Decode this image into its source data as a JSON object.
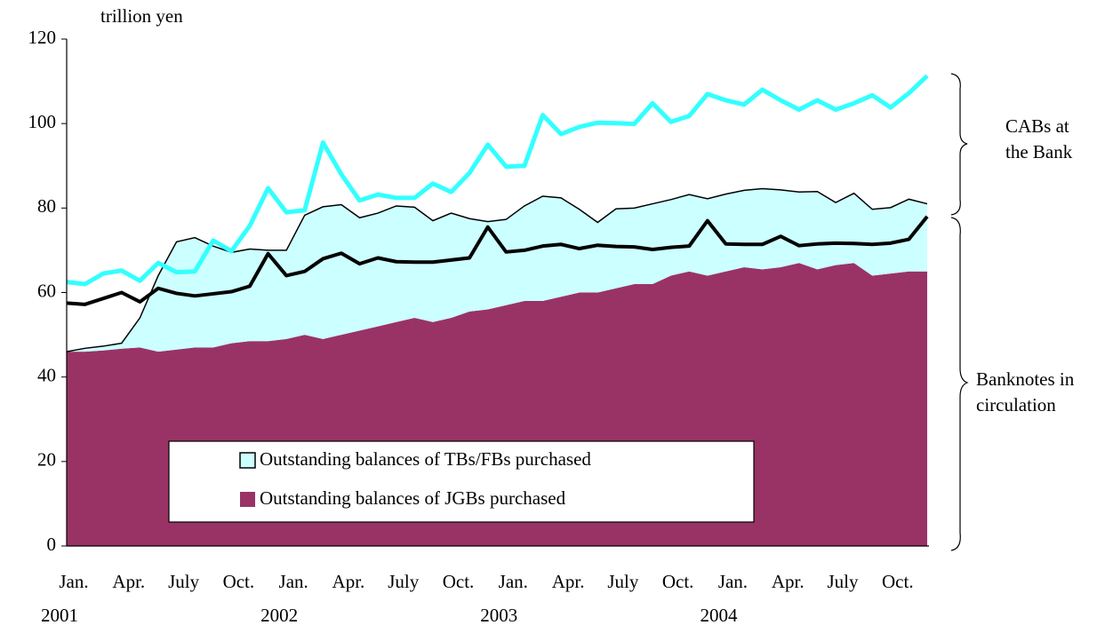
{
  "chart_data": {
    "type": "area",
    "y_label": "trillion yen",
    "categories": [
      "Jan.",
      null,
      null,
      "Apr.",
      null,
      null,
      "July",
      null,
      null,
      "Oct.",
      null,
      null,
      "Jan.",
      null,
      null,
      "Apr.",
      null,
      null,
      "July",
      null,
      null,
      "Oct.",
      null,
      null,
      "Jan.",
      null,
      null,
      "Apr.",
      null,
      null,
      "July",
      null,
      null,
      "Oct.",
      null,
      null,
      "Jan.",
      null,
      null,
      "Apr.",
      null,
      null,
      "July",
      null,
      null,
      "Oct.",
      null,
      null
    ],
    "year_labels": [
      "2001",
      "2002",
      "2003",
      "2004"
    ],
    "ylim": [
      0,
      120
    ],
    "yticks": [
      0,
      20,
      40,
      60,
      80,
      100,
      120
    ],
    "series": [
      {
        "name": "Outstanding balances of JGBs purchased",
        "color": "#993366",
        "style": "area",
        "values": [
          46,
          46,
          46.3,
          46.7,
          47,
          46,
          46.5,
          47,
          47,
          48,
          48.5,
          48.5,
          49,
          50,
          49,
          50,
          51,
          52,
          53,
          54,
          53,
          54,
          55.5,
          56,
          57,
          58,
          58,
          59,
          60,
          60,
          61,
          62,
          62,
          64,
          65,
          64,
          65,
          66,
          65.5,
          66,
          67,
          65.5,
          66.5,
          67,
          64,
          64.5,
          65,
          65
        ]
      },
      {
        "name": "Outstanding balances of TBs/FBs purchased",
        "color": "#ccffff",
        "style": "area",
        "values": [
          0,
          0.8,
          1,
          1.3,
          7,
          18,
          25.5,
          26,
          24,
          21.5,
          21.8,
          21.5,
          21,
          28.3,
          31.3,
          30.8,
          26.7,
          26.8,
          27.5,
          26.2,
          24,
          24.8,
          22,
          20.8,
          20.3,
          22.5,
          24.8,
          23.4,
          19.7,
          16.6,
          18.8,
          18,
          19,
          18,
          18.2,
          18.2,
          18.3,
          18.2,
          19.1,
          18.3,
          16.8,
          18.4,
          14.8,
          16.5,
          15.7,
          15.6,
          17.1,
          16
        ]
      },
      {
        "color": "#000000",
        "style": "line",
        "values": [
          57.5,
          57.2,
          58.6,
          60,
          57.8,
          61,
          59.8,
          59.2,
          59.7,
          60.2,
          61.5,
          69.2,
          64,
          65,
          68,
          69.3,
          66.8,
          68.2,
          67.3,
          67.2,
          67.2,
          67.7,
          68.2,
          75.5,
          69.6,
          70,
          71,
          71.4,
          70.4,
          71.2,
          70.9,
          70.8,
          70.2,
          70.7,
          71,
          77,
          71.5,
          71.4,
          71.4,
          73.3,
          71.1,
          71.5,
          71.7,
          71.6,
          71.4,
          71.7,
          72.6,
          78
        ]
      },
      {
        "color": "#33ffff",
        "style": "line",
        "values": [
          62.5,
          62,
          64.5,
          65.2,
          62.8,
          67,
          64.8,
          65,
          72.3,
          69.8,
          75.8,
          84.7,
          79,
          79.5,
          95.5,
          88,
          81.8,
          83.2,
          82.4,
          82.4,
          85.8,
          83.8,
          88.3,
          95,
          89.8,
          90,
          102,
          97.5,
          99.2,
          100.2,
          100.1,
          99.9,
          104.8,
          100.4,
          101.8,
          107,
          105.5,
          104.5,
          108,
          105.5,
          103.3,
          105.5,
          103.3,
          104.8,
          106.7,
          103.8,
          107.2,
          111.3
        ]
      }
    ],
    "legend": "bottom-left",
    "annotations": [
      "CABs at the Bank",
      "Banknotes in circulation"
    ]
  }
}
